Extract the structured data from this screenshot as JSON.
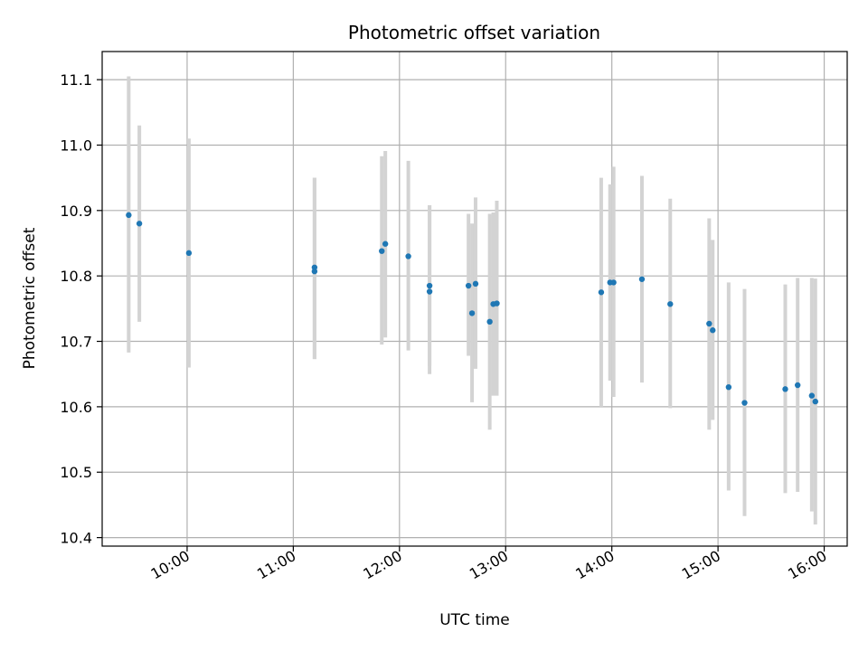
{
  "chart_data": {
    "type": "scatter",
    "title": "Photometric offset variation",
    "xlabel": "UTC time",
    "ylabel": "Photometric offset",
    "x_axis": "time",
    "xlim": [
      "09:12",
      "16:13"
    ],
    "ylim": [
      10.387,
      11.143
    ],
    "grid": true,
    "x_ticks": [
      "10:00",
      "11:00",
      "12:00",
      "13:00",
      "14:00",
      "15:00",
      "16:00"
    ],
    "y_ticks": [
      "10.4",
      "10.5",
      "10.6",
      "10.7",
      "10.8",
      "10.9",
      "11.0",
      "11.1"
    ],
    "point_color": "#1f77b4",
    "errorbar_color": "#d3d3d3",
    "points": [
      {
        "x": "09:27",
        "y": 10.893,
        "err_low": 10.683,
        "err_high": 11.105
      },
      {
        "x": "09:33",
        "y": 10.88,
        "err_low": 10.73,
        "err_high": 11.03
      },
      {
        "x": "10:01",
        "y": 10.835,
        "err_low": 10.66,
        "err_high": 11.01
      },
      {
        "x": "11:12",
        "y": 10.813,
        "err_low": 10.673,
        "err_high": 10.95
      },
      {
        "x": "11:12",
        "y": 10.807,
        "err_low": 10.673,
        "err_high": 10.95
      },
      {
        "x": "11:50",
        "y": 10.838,
        "err_low": 10.695,
        "err_high": 10.983
      },
      {
        "x": "11:52",
        "y": 10.849,
        "err_low": 10.706,
        "err_high": 10.991
      },
      {
        "x": "12:05",
        "y": 10.83,
        "err_low": 10.686,
        "err_high": 10.976
      },
      {
        "x": "12:17",
        "y": 10.785,
        "err_low": 10.65,
        "err_high": 10.908
      },
      {
        "x": "12:17",
        "y": 10.776,
        "err_low": 10.663,
        "err_high": 10.908
      },
      {
        "x": "12:39",
        "y": 10.785,
        "err_low": 10.678,
        "err_high": 10.895
      },
      {
        "x": "12:41",
        "y": 10.743,
        "err_low": 10.607,
        "err_high": 10.88
      },
      {
        "x": "12:43",
        "y": 10.788,
        "err_low": 10.658,
        "err_high": 10.92
      },
      {
        "x": "12:51",
        "y": 10.73,
        "err_low": 10.565,
        "err_high": 10.895
      },
      {
        "x": "12:53",
        "y": 10.757,
        "err_low": 10.617,
        "err_high": 10.897
      },
      {
        "x": "12:55",
        "y": 10.758,
        "err_low": 10.617,
        "err_high": 10.915
      },
      {
        "x": "13:54",
        "y": 10.775,
        "err_low": 10.6,
        "err_high": 10.95
      },
      {
        "x": "13:59",
        "y": 10.79,
        "err_low": 10.64,
        "err_high": 10.94
      },
      {
        "x": "14:01",
        "y": 10.79,
        "err_low": 10.615,
        "err_high": 10.967
      },
      {
        "x": "14:17",
        "y": 10.795,
        "err_low": 10.637,
        "err_high": 10.953
      },
      {
        "x": "14:33",
        "y": 10.757,
        "err_low": 10.598,
        "err_high": 10.918
      },
      {
        "x": "14:55",
        "y": 10.727,
        "err_low": 10.565,
        "err_high": 10.888
      },
      {
        "x": "14:57",
        "y": 10.717,
        "err_low": 10.58,
        "err_high": 10.855
      },
      {
        "x": "15:06",
        "y": 10.63,
        "err_low": 10.472,
        "err_high": 10.79
      },
      {
        "x": "15:15",
        "y": 10.606,
        "err_low": 10.433,
        "err_high": 10.78
      },
      {
        "x": "15:38",
        "y": 10.627,
        "err_low": 10.468,
        "err_high": 10.787
      },
      {
        "x": "15:45",
        "y": 10.633,
        "err_low": 10.47,
        "err_high": 10.797
      },
      {
        "x": "15:53",
        "y": 10.617,
        "err_low": 10.44,
        "err_high": 10.797
      },
      {
        "x": "15:55",
        "y": 10.608,
        "err_low": 10.42,
        "err_high": 10.796
      }
    ]
  }
}
